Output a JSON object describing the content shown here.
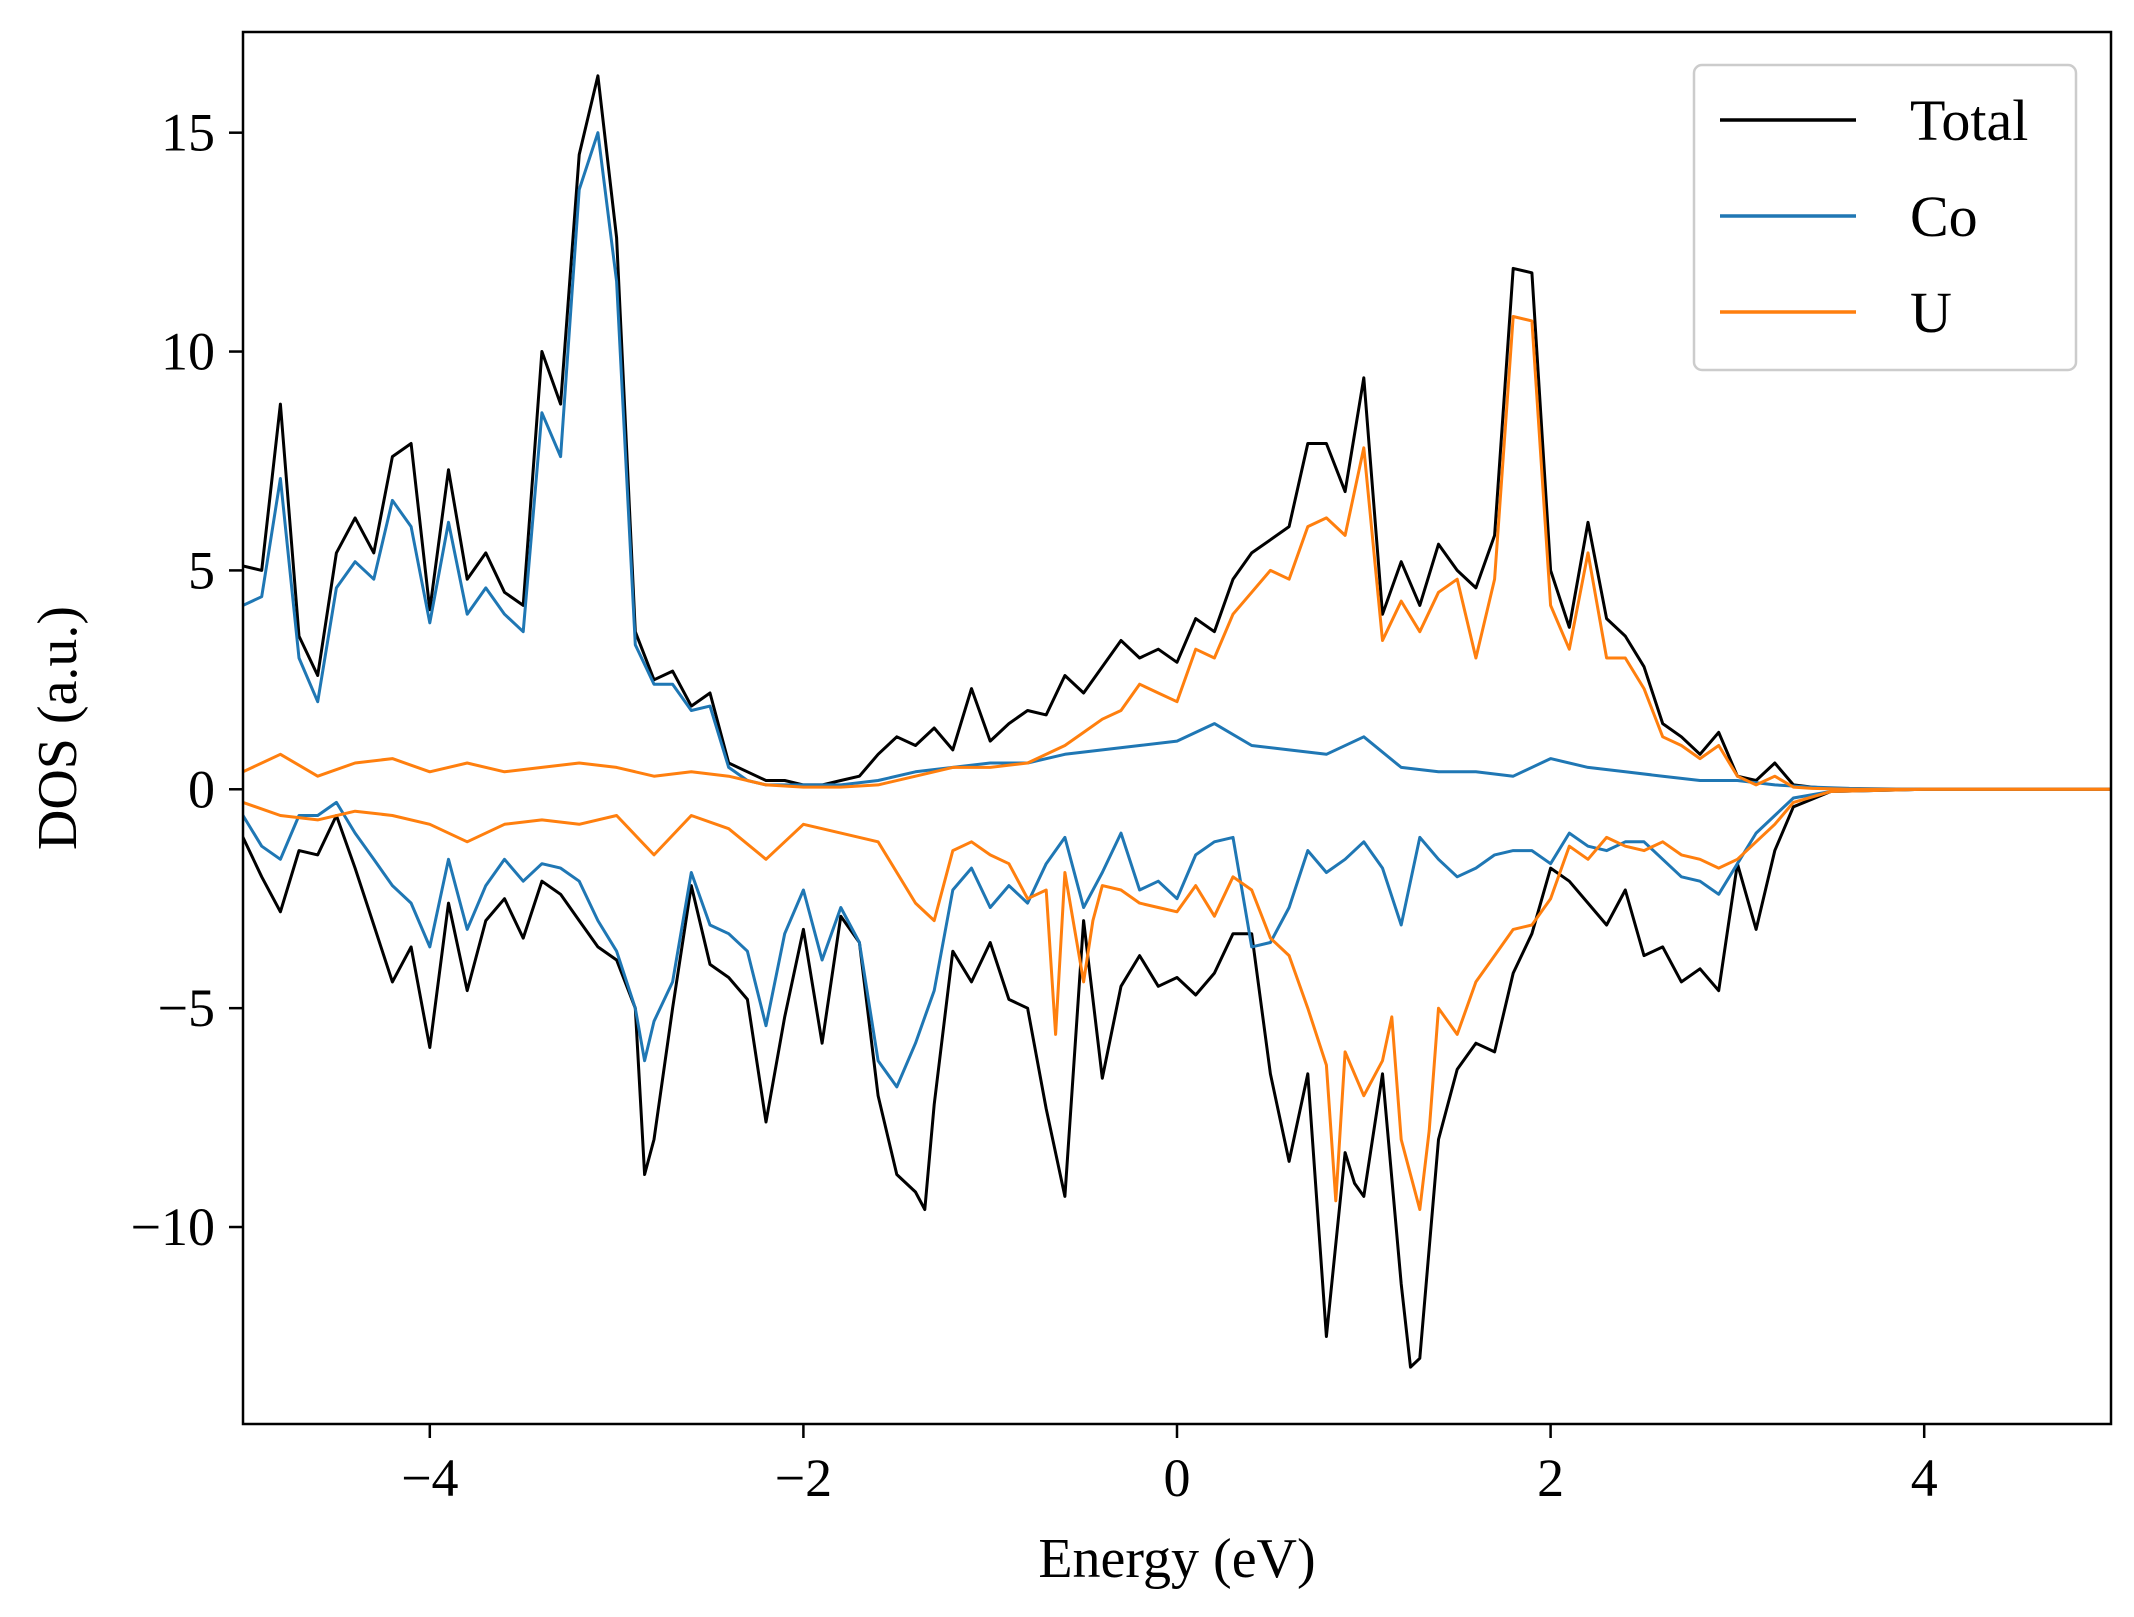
{
  "chart_data": {
    "type": "line",
    "xlabel": "Energy (eV)",
    "ylabel": "DOS (a.u.)",
    "xlim": [
      -5,
      5
    ],
    "ylim": [
      -14.5,
      17.3
    ],
    "xticks": [
      -4,
      -2,
      0,
      2,
      4
    ],
    "xtick_labels": [
      "−4",
      "−2",
      "0",
      "2",
      "4"
    ],
    "yticks": [
      -10,
      -5,
      0,
      5,
      10,
      15
    ],
    "ytick_labels": [
      "−10",
      "−5",
      "0",
      "5",
      "10",
      "15"
    ],
    "grid": false,
    "legend_position": "top-right",
    "colors": {
      "Total": "#000000",
      "Co": "#1f77b4",
      "U": "#ff7f0e"
    },
    "series": [
      {
        "name": "Total",
        "spin_up": {
          "x": [
            -5.0,
            -4.9,
            -4.8,
            -4.7,
            -4.6,
            -4.5,
            -4.4,
            -4.3,
            -4.2,
            -4.1,
            -4.0,
            -3.9,
            -3.8,
            -3.7,
            -3.6,
            -3.5,
            -3.4,
            -3.3,
            -3.2,
            -3.1,
            -3.0,
            -2.9,
            -2.8,
            -2.7,
            -2.6,
            -2.5,
            -2.4,
            -2.3,
            -2.2,
            -2.1,
            -2.0,
            -1.9,
            -1.8,
            -1.7,
            -1.6,
            -1.5,
            -1.4,
            -1.3,
            -1.2,
            -1.1,
            -1.0,
            -0.9,
            -0.8,
            -0.7,
            -0.6,
            -0.5,
            -0.4,
            -0.3,
            -0.2,
            -0.1,
            0.0,
            0.1,
            0.2,
            0.3,
            0.4,
            0.5,
            0.6,
            0.7,
            0.8,
            0.9,
            1.0,
            1.1,
            1.2,
            1.3,
            1.4,
            1.5,
            1.6,
            1.7,
            1.8,
            1.9,
            2.0,
            2.1,
            2.2,
            2.3,
            2.4,
            2.5,
            2.6,
            2.7,
            2.8,
            2.9,
            3.0,
            3.1,
            3.2,
            3.3,
            3.4,
            3.5,
            3.6,
            3.8,
            4.0,
            4.5,
            5.0
          ],
          "y": [
            5.1,
            5.0,
            8.8,
            3.5,
            2.6,
            5.4,
            6.2,
            5.4,
            7.6,
            7.9,
            4.1,
            7.3,
            4.8,
            5.4,
            4.5,
            4.2,
            10.0,
            8.8,
            14.5,
            16.3,
            12.6,
            3.6,
            2.5,
            2.7,
            1.9,
            2.2,
            0.6,
            0.4,
            0.2,
            0.2,
            0.1,
            0.1,
            0.2,
            0.3,
            0.8,
            1.2,
            1.0,
            1.4,
            0.9,
            2.3,
            1.1,
            1.5,
            1.8,
            1.7,
            2.6,
            2.2,
            2.8,
            3.4,
            3.0,
            3.2,
            2.9,
            3.9,
            3.6,
            4.8,
            5.4,
            5.7,
            6.0,
            7.9,
            7.9,
            6.8,
            9.4,
            4.0,
            5.2,
            4.2,
            5.6,
            5.0,
            4.6,
            5.8,
            11.9,
            11.8,
            5.0,
            3.7,
            6.1,
            3.9,
            3.5,
            2.8,
            1.5,
            1.2,
            0.8,
            1.3,
            0.3,
            0.2,
            0.6,
            0.1,
            0.05,
            0.02,
            0.0,
            0.0,
            0.0,
            0.0,
            0.0
          ]
        },
        "spin_down": {
          "x": [
            -5.0,
            -4.9,
            -4.8,
            -4.7,
            -4.6,
            -4.5,
            -4.4,
            -4.3,
            -4.2,
            -4.1,
            -4.0,
            -3.9,
            -3.8,
            -3.7,
            -3.6,
            -3.5,
            -3.4,
            -3.3,
            -3.2,
            -3.1,
            -3.0,
            -2.9,
            -2.85,
            -2.8,
            -2.7,
            -2.6,
            -2.5,
            -2.4,
            -2.3,
            -2.2,
            -2.1,
            -2.0,
            -1.9,
            -1.8,
            -1.7,
            -1.6,
            -1.5,
            -1.4,
            -1.35,
            -1.3,
            -1.2,
            -1.1,
            -1.0,
            -0.9,
            -0.8,
            -0.7,
            -0.6,
            -0.5,
            -0.4,
            -0.3,
            -0.2,
            -0.1,
            0.0,
            0.1,
            0.2,
            0.3,
            0.4,
            0.5,
            0.6,
            0.7,
            0.8,
            0.9,
            0.95,
            1.0,
            1.1,
            1.2,
            1.25,
            1.3,
            1.4,
            1.5,
            1.6,
            1.7,
            1.8,
            1.9,
            2.0,
            2.1,
            2.2,
            2.3,
            2.4,
            2.5,
            2.6,
            2.7,
            2.8,
            2.9,
            3.0,
            3.1,
            3.2,
            3.3,
            3.5,
            4.0,
            5.0
          ],
          "y": [
            -1.1,
            -2.0,
            -2.8,
            -1.4,
            -1.5,
            -0.6,
            -1.8,
            -3.1,
            -4.4,
            -3.6,
            -5.9,
            -2.6,
            -4.6,
            -3.0,
            -2.5,
            -3.4,
            -2.1,
            -2.4,
            -3.0,
            -3.6,
            -3.9,
            -5.0,
            -8.8,
            -8.0,
            -5.0,
            -2.2,
            -4.0,
            -4.3,
            -4.8,
            -7.6,
            -5.2,
            -3.2,
            -5.8,
            -2.9,
            -3.5,
            -7.0,
            -8.8,
            -9.2,
            -9.6,
            -7.2,
            -3.7,
            -4.4,
            -3.5,
            -4.8,
            -5.0,
            -7.3,
            -9.3,
            -3.0,
            -6.6,
            -4.5,
            -3.8,
            -4.5,
            -4.3,
            -4.7,
            -4.2,
            -3.3,
            -3.3,
            -6.5,
            -8.5,
            -6.5,
            -12.5,
            -8.3,
            -9.0,
            -9.3,
            -6.5,
            -11.3,
            -13.2,
            -13.0,
            -8.0,
            -6.4,
            -5.8,
            -6.0,
            -4.2,
            -3.3,
            -1.8,
            -2.1,
            -2.6,
            -3.1,
            -2.3,
            -3.8,
            -3.6,
            -4.4,
            -4.1,
            -4.6,
            -1.7,
            -3.2,
            -1.4,
            -0.4,
            -0.05,
            0.0,
            0.0
          ]
        }
      },
      {
        "name": "Co",
        "spin_up": {
          "x": [
            -5.0,
            -4.9,
            -4.8,
            -4.7,
            -4.6,
            -4.5,
            -4.4,
            -4.3,
            -4.2,
            -4.1,
            -4.0,
            -3.9,
            -3.8,
            -3.7,
            -3.6,
            -3.5,
            -3.4,
            -3.3,
            -3.2,
            -3.1,
            -3.0,
            -2.9,
            -2.8,
            -2.7,
            -2.6,
            -2.5,
            -2.4,
            -2.3,
            -2.2,
            -2.1,
            -2.0,
            -1.8,
            -1.6,
            -1.4,
            -1.2,
            -1.0,
            -0.8,
            -0.6,
            -0.4,
            -0.2,
            0.0,
            0.2,
            0.4,
            0.6,
            0.8,
            1.0,
            1.2,
            1.4,
            1.6,
            1.8,
            2.0,
            2.2,
            2.4,
            2.6,
            2.8,
            3.0,
            3.2,
            3.4,
            3.6,
            4.0,
            5.0
          ],
          "y": [
            4.2,
            4.4,
            7.1,
            3.0,
            2.0,
            4.6,
            5.2,
            4.8,
            6.6,
            6.0,
            3.8,
            6.1,
            4.0,
            4.6,
            4.0,
            3.6,
            8.6,
            7.6,
            13.7,
            15.0,
            11.6,
            3.3,
            2.4,
            2.4,
            1.8,
            1.9,
            0.5,
            0.2,
            0.1,
            0.1,
            0.1,
            0.1,
            0.2,
            0.4,
            0.5,
            0.6,
            0.6,
            0.8,
            0.9,
            1.0,
            1.1,
            1.5,
            1.0,
            0.9,
            0.8,
            1.2,
            0.5,
            0.4,
            0.4,
            0.3,
            0.7,
            0.5,
            0.4,
            0.3,
            0.2,
            0.2,
            0.1,
            0.05,
            0.02,
            0.0,
            0.0
          ]
        },
        "spin_down": {
          "x": [
            -5.0,
            -4.9,
            -4.8,
            -4.7,
            -4.6,
            -4.5,
            -4.4,
            -4.3,
            -4.2,
            -4.1,
            -4.0,
            -3.9,
            -3.8,
            -3.7,
            -3.6,
            -3.5,
            -3.4,
            -3.3,
            -3.2,
            -3.1,
            -3.0,
            -2.9,
            -2.85,
            -2.8,
            -2.7,
            -2.6,
            -2.5,
            -2.4,
            -2.3,
            -2.2,
            -2.1,
            -2.0,
            -1.9,
            -1.8,
            -1.7,
            -1.6,
            -1.5,
            -1.4,
            -1.3,
            -1.2,
            -1.1,
            -1.0,
            -0.9,
            -0.8,
            -0.7,
            -0.6,
            -0.5,
            -0.4,
            -0.3,
            -0.2,
            -0.1,
            0.0,
            0.1,
            0.2,
            0.3,
            0.4,
            0.5,
            0.6,
            0.7,
            0.8,
            0.9,
            1.0,
            1.1,
            1.2,
            1.3,
            1.4,
            1.5,
            1.6,
            1.7,
            1.8,
            1.9,
            2.0,
            2.1,
            2.2,
            2.3,
            2.4,
            2.5,
            2.6,
            2.7,
            2.8,
            2.9,
            3.0,
            3.1,
            3.2,
            3.3,
            3.5,
            4.0,
            5.0
          ],
          "y": [
            -0.6,
            -1.3,
            -1.6,
            -0.6,
            -0.6,
            -0.3,
            -1.0,
            -1.6,
            -2.2,
            -2.6,
            -3.6,
            -1.6,
            -3.2,
            -2.2,
            -1.6,
            -2.1,
            -1.7,
            -1.8,
            -2.1,
            -3.0,
            -3.7,
            -5.0,
            -6.2,
            -5.3,
            -4.4,
            -1.9,
            -3.1,
            -3.3,
            -3.7,
            -5.4,
            -3.3,
            -2.3,
            -3.9,
            -2.7,
            -3.5,
            -6.2,
            -6.8,
            -5.8,
            -4.6,
            -2.3,
            -1.8,
            -2.7,
            -2.2,
            -2.6,
            -1.7,
            -1.1,
            -2.7,
            -1.9,
            -1.0,
            -2.3,
            -2.1,
            -2.5,
            -1.5,
            -1.2,
            -1.1,
            -3.6,
            -3.5,
            -2.7,
            -1.4,
            -1.9,
            -1.6,
            -1.2,
            -1.8,
            -3.1,
            -1.1,
            -1.6,
            -2.0,
            -1.8,
            -1.5,
            -1.4,
            -1.4,
            -1.7,
            -1.0,
            -1.3,
            -1.4,
            -1.2,
            -1.2,
            -1.6,
            -2.0,
            -2.1,
            -2.4,
            -1.7,
            -1.0,
            -0.6,
            -0.2,
            -0.05,
            0.0,
            0.0
          ]
        }
      },
      {
        "name": "U",
        "spin_up": {
          "x": [
            -5.0,
            -4.8,
            -4.6,
            -4.4,
            -4.2,
            -4.0,
            -3.8,
            -3.6,
            -3.4,
            -3.2,
            -3.0,
            -2.8,
            -2.6,
            -2.4,
            -2.2,
            -2.0,
            -1.8,
            -1.6,
            -1.4,
            -1.2,
            -1.0,
            -0.8,
            -0.6,
            -0.5,
            -0.4,
            -0.3,
            -0.2,
            -0.1,
            0.0,
            0.1,
            0.2,
            0.3,
            0.4,
            0.5,
            0.6,
            0.7,
            0.8,
            0.9,
            1.0,
            1.1,
            1.2,
            1.3,
            1.4,
            1.5,
            1.6,
            1.7,
            1.8,
            1.9,
            2.0,
            2.1,
            2.2,
            2.3,
            2.4,
            2.5,
            2.6,
            2.7,
            2.8,
            2.9,
            3.0,
            3.1,
            3.2,
            3.3,
            3.4,
            3.6,
            4.0,
            5.0
          ],
          "y": [
            0.4,
            0.8,
            0.3,
            0.6,
            0.7,
            0.4,
            0.6,
            0.4,
            0.5,
            0.6,
            0.5,
            0.3,
            0.4,
            0.3,
            0.1,
            0.05,
            0.05,
            0.1,
            0.3,
            0.5,
            0.5,
            0.6,
            1.0,
            1.3,
            1.6,
            1.8,
            2.4,
            2.2,
            2.0,
            3.2,
            3.0,
            4.0,
            4.5,
            5.0,
            4.8,
            6.0,
            6.2,
            5.8,
            7.8,
            3.4,
            4.3,
            3.6,
            4.5,
            4.8,
            3.0,
            4.8,
            10.8,
            10.7,
            4.2,
            3.2,
            5.4,
            3.0,
            3.0,
            2.3,
            1.2,
            1.0,
            0.7,
            1.0,
            0.3,
            0.1,
            0.3,
            0.05,
            0.02,
            0.0,
            0.0,
            0.0
          ]
        },
        "spin_down": {
          "x": [
            -5.0,
            -4.8,
            -4.6,
            -4.4,
            -4.2,
            -4.0,
            -3.8,
            -3.6,
            -3.4,
            -3.2,
            -3.0,
            -2.8,
            -2.6,
            -2.4,
            -2.2,
            -2.0,
            -1.8,
            -1.6,
            -1.4,
            -1.3,
            -1.2,
            -1.1,
            -1.0,
            -0.9,
            -0.8,
            -0.7,
            -0.65,
            -0.6,
            -0.5,
            -0.45,
            -0.4,
            -0.3,
            -0.2,
            -0.1,
            0.0,
            0.1,
            0.2,
            0.3,
            0.4,
            0.5,
            0.6,
            0.7,
            0.8,
            0.85,
            0.9,
            1.0,
            1.1,
            1.15,
            1.2,
            1.3,
            1.35,
            1.4,
            1.5,
            1.6,
            1.7,
            1.8,
            1.9,
            2.0,
            2.1,
            2.2,
            2.3,
            2.4,
            2.5,
            2.6,
            2.7,
            2.8,
            2.9,
            3.0,
            3.1,
            3.2,
            3.3,
            3.5,
            4.0,
            5.0
          ],
          "y": [
            -0.3,
            -0.6,
            -0.7,
            -0.5,
            -0.6,
            -0.8,
            -1.2,
            -0.8,
            -0.7,
            -0.8,
            -0.6,
            -1.5,
            -0.6,
            -0.9,
            -1.6,
            -0.8,
            -1.0,
            -1.2,
            -2.6,
            -3.0,
            -1.4,
            -1.2,
            -1.5,
            -1.7,
            -2.5,
            -2.3,
            -5.6,
            -1.9,
            -4.4,
            -3.0,
            -2.2,
            -2.3,
            -2.6,
            -2.7,
            -2.8,
            -2.2,
            -2.9,
            -2.0,
            -2.3,
            -3.4,
            -3.8,
            -5.0,
            -6.3,
            -9.4,
            -6.0,
            -7.0,
            -6.2,
            -5.2,
            -8.0,
            -9.6,
            -7.8,
            -5.0,
            -5.6,
            -4.4,
            -3.8,
            -3.2,
            -3.1,
            -2.5,
            -1.3,
            -1.6,
            -1.1,
            -1.3,
            -1.4,
            -1.2,
            -1.5,
            -1.6,
            -1.8,
            -1.6,
            -1.2,
            -0.8,
            -0.3,
            -0.05,
            0.0,
            0.0
          ]
        }
      }
    ]
  }
}
